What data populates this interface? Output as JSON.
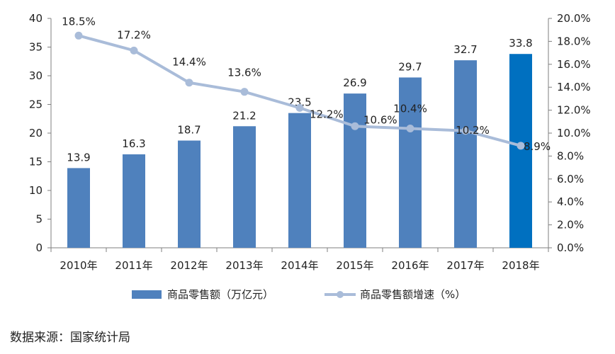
{
  "chart_data": {
    "type": "bar",
    "categories": [
      "2010年",
      "2011年",
      "2012年",
      "2013年",
      "2014年",
      "2015年",
      "2016年",
      "2017年",
      "2018年"
    ],
    "series": [
      {
        "name": "商品零售额（万亿元）",
        "type": "bar",
        "axis": "left",
        "values": [
          13.9,
          16.3,
          18.7,
          21.2,
          23.5,
          26.9,
          29.7,
          32.7,
          33.8
        ],
        "labels": [
          "13.9",
          "16.3",
          "18.7",
          "21.2",
          "23.5",
          "26.9",
          "29.7",
          "32.7",
          "33.8"
        ],
        "color": "#4f81bd",
        "highlight_color": "#0070c0",
        "highlight_index": 8
      },
      {
        "name": "商品零售额增速（%）",
        "type": "line",
        "axis": "right",
        "values": [
          18.5,
          17.2,
          14.4,
          13.6,
          12.2,
          10.6,
          10.4,
          10.2,
          8.9
        ],
        "labels": [
          "18.5%",
          "17.2%",
          "14.4%",
          "13.6%",
          "12.2%",
          "10.6%",
          "10.4%",
          "10.2%",
          "8.9%"
        ],
        "color": "#a9bcd9"
      }
    ],
    "y_left": {
      "min": 0,
      "max": 40,
      "step": 5,
      "ticks": [
        "0",
        "5",
        "10",
        "15",
        "20",
        "25",
        "30",
        "35",
        "40"
      ]
    },
    "y_right": {
      "min": 0,
      "max": 20,
      "step": 2,
      "ticks": [
        "0.0%",
        "2.0%",
        "4.0%",
        "6.0%",
        "8.0%",
        "10.0%",
        "12.0%",
        "14.0%",
        "16.0%",
        "18.0%",
        "20.0%"
      ]
    },
    "grid": false,
    "legend_position": "bottom"
  },
  "source": "数据来源：国家统计局"
}
